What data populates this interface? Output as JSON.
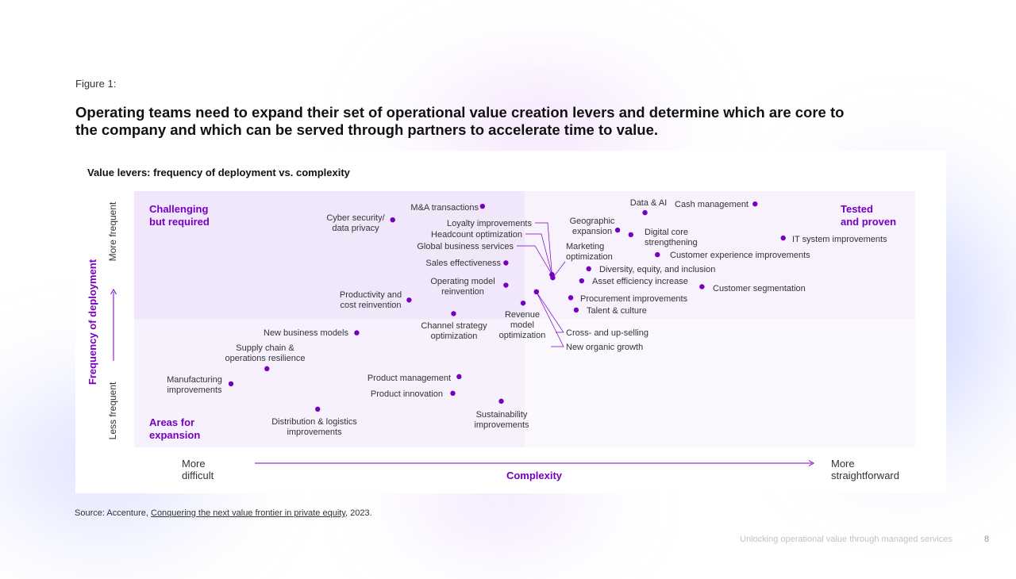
{
  "page": {
    "figure_label": "Figure 1:",
    "headline": "Operating teams need to expand their set of operational value creation levers and determine which are core to the company and which can be served through partners to accelerate time to value.",
    "source_prefix": "Source: Accenture, ",
    "source_link": "Conquering the next value frontier in private equity",
    "source_suffix": ", 2023.",
    "footer": "Unlocking operational value through managed services",
    "page_number": "8"
  },
  "colors": {
    "accent": "#7500C0",
    "quadrant_left_top": "#F1E7FB",
    "quadrant_left_bottom": "#F7F1FD",
    "quadrant_right_top": "#F8F2FD",
    "quadrant_right_bottom": "#FCF9FE"
  },
  "chart_data": {
    "type": "scatter",
    "title": "Value levers: frequency of deployment vs. complexity",
    "xlabel": "Complexity",
    "ylabel": "Frequency of deployment",
    "x_axis_ends": {
      "low": [
        "More",
        "difficult"
      ],
      "high": [
        "More",
        "straightforward"
      ]
    },
    "y_axis_ends": {
      "low": "Less frequent",
      "high": "More frequent"
    },
    "xlim": [
      0,
      100
    ],
    "ylim": [
      0,
      100
    ],
    "x_split": 50,
    "y_split": 50,
    "quadrants": {
      "top_left": [
        "Challenging",
        "but required"
      ],
      "top_right": [
        "Tested",
        "and proven"
      ],
      "bottom_left": [
        "Areas for",
        "expansion"
      ]
    },
    "points": [
      {
        "label": [
          "M&A transactions"
        ],
        "x": 44.6,
        "y": 94.1
      },
      {
        "label": [
          "Cyber security/",
          "data privacy"
        ],
        "x": 33.1,
        "y": 88.8
      },
      {
        "label": [
          "Loyalty improvements"
        ],
        "x": 53.5,
        "y": 67.4
      },
      {
        "label": [
          "Headcount optimization"
        ],
        "x": 53.5,
        "y": 67.4
      },
      {
        "label": [
          "Global business services"
        ],
        "x": 53.5,
        "y": 67.4
      },
      {
        "label": [
          "Marketing",
          "optimization"
        ],
        "x": 53.6,
        "y": 66.2
      },
      {
        "label": [
          "Sales effectiveness"
        ],
        "x": 47.6,
        "y": 72.0
      },
      {
        "label": [
          "Operating model",
          "reinvention"
        ],
        "x": 47.6,
        "y": 63.3
      },
      {
        "label": [
          "Productivity and",
          "cost reinvention"
        ],
        "x": 35.2,
        "y": 57.5
      },
      {
        "label": [
          "Channel strategy",
          "optimization"
        ],
        "x": 40.9,
        "y": 52.2
      },
      {
        "label": [
          "Revenue",
          "model",
          "optimization"
        ],
        "x": 49.8,
        "y": 56.3
      },
      {
        "label": [
          "Cross- and up-selling"
        ],
        "x": 51.5,
        "y": 60.7
      },
      {
        "label": [
          "New organic growth"
        ],
        "x": 51.5,
        "y": 60.7
      },
      {
        "label": [
          "Data & AI"
        ],
        "x": 65.4,
        "y": 91.6
      },
      {
        "label": [
          "Cash management"
        ],
        "x": 79.5,
        "y": 95.0
      },
      {
        "label": [
          "Geographic",
          "expansion"
        ],
        "x": 61.9,
        "y": 84.8
      },
      {
        "label": [
          "Digital core",
          "strengthening"
        ],
        "x": 63.6,
        "y": 83.0
      },
      {
        "label": [
          "IT system improvements"
        ],
        "x": 83.1,
        "y": 81.7
      },
      {
        "label": [
          "Customer experience improvements"
        ],
        "x": 67.0,
        "y": 75.2
      },
      {
        "label": [
          "Diversity, equity, and inclusion"
        ],
        "x": 58.2,
        "y": 69.7
      },
      {
        "label": [
          "Asset efficiency increase"
        ],
        "x": 57.3,
        "y": 65.0
      },
      {
        "label": [
          "Customer segmentation"
        ],
        "x": 72.7,
        "y": 62.7
      },
      {
        "label": [
          "Procurement improvements"
        ],
        "x": 55.9,
        "y": 58.4
      },
      {
        "label": [
          "Talent & culture"
        ],
        "x": 56.6,
        "y": 53.6
      },
      {
        "label": [
          "New business models"
        ],
        "x": 28.5,
        "y": 44.7
      },
      {
        "label": [
          "Supply chain &",
          "operations resilience"
        ],
        "x": 17.0,
        "y": 30.7
      },
      {
        "label": [
          "Manufacturing",
          "improvements"
        ],
        "x": 12.4,
        "y": 24.8
      },
      {
        "label": [
          "Product management"
        ],
        "x": 41.6,
        "y": 27.6
      },
      {
        "label": [
          "Product innovation"
        ],
        "x": 40.8,
        "y": 21.1
      },
      {
        "label": [
          "Sustainability",
          "improvements"
        ],
        "x": 47.0,
        "y": 18.0
      },
      {
        "label": [
          "Distribution & logistics",
          "improvements"
        ],
        "x": 23.5,
        "y": 14.9
      }
    ]
  }
}
